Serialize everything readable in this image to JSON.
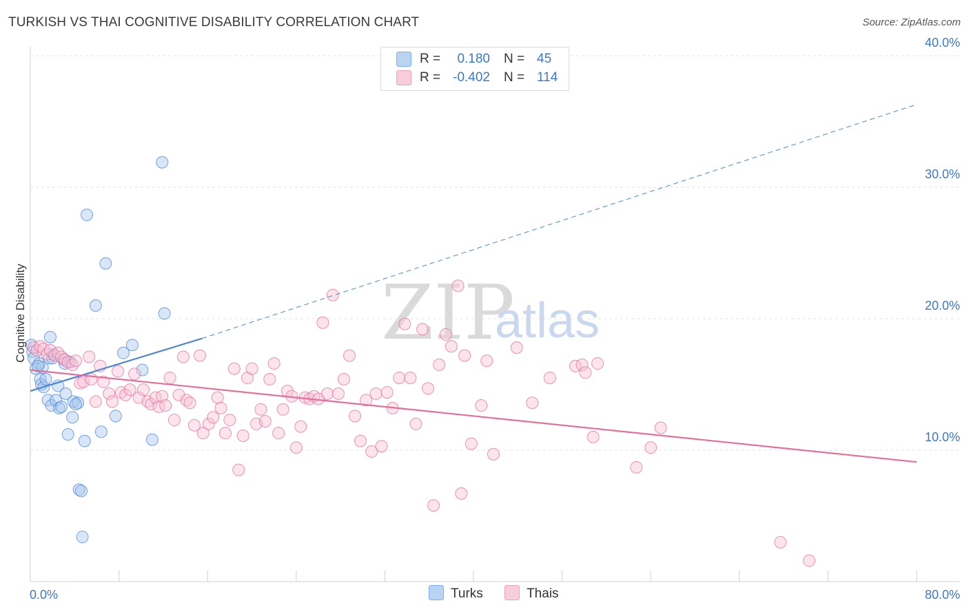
{
  "title": "TURKISH VS THAI COGNITIVE DISABILITY CORRELATION CHART",
  "source": "Source: ZipAtlas.com",
  "watermark": {
    "zip": "ZIP",
    "atlas": "atlas"
  },
  "legend": {
    "rows": [
      {
        "r_label": "R =",
        "r_value": "0.180",
        "n_label": "N =",
        "n_value": "45",
        "color": "#9bbfe8"
      },
      {
        "r_label": "R =",
        "r_value": "-0.402",
        "n_label": "N =",
        "n_value": "114",
        "color": "#f3a8c0"
      }
    ]
  },
  "bottom_legend": [
    {
      "label": "Turks",
      "color": "#9bbfe8"
    },
    {
      "label": "Thais",
      "color": "#f3a8c0"
    }
  ],
  "chart_data": {
    "type": "scatter",
    "title": "TURKISH VS THAI COGNITIVE DISABILITY CORRELATION CHART",
    "xlabel": "",
    "ylabel": "Cognitive Disability",
    "xlim": [
      0,
      80
    ],
    "ylim": [
      0,
      40
    ],
    "x_tick_labels": [
      {
        "value": 0,
        "label": "0.0%"
      },
      {
        "value": 80,
        "label": "80.0%"
      }
    ],
    "y_tick_labels": [
      {
        "value": 10,
        "label": "10.0%"
      },
      {
        "value": 20,
        "label": "20.0%"
      },
      {
        "value": 30,
        "label": "30.0%"
      },
      {
        "value": 40,
        "label": "40.0%"
      }
    ],
    "series": [
      {
        "name": "Turks",
        "color": "#4a86d4",
        "fill": "#a9c8ee",
        "trend": {
          "x0": 0,
          "y0": 14.5,
          "x1": 15.5,
          "y1": 18.5,
          "extend_to_x": 80,
          "extend_to_y": 36.3
        },
        "points": [
          [
            0.1,
            18.0
          ],
          [
            0.2,
            17.5
          ],
          [
            0.3,
            17.0
          ],
          [
            0.5,
            16.2
          ],
          [
            0.8,
            16.6
          ],
          [
            0.9,
            15.4
          ],
          [
            1.0,
            15.0
          ],
          [
            1.2,
            14.8
          ],
          [
            1.4,
            15.4
          ],
          [
            1.6,
            13.8
          ],
          [
            1.7,
            17.0
          ],
          [
            1.8,
            18.6
          ],
          [
            1.9,
            13.4
          ],
          [
            2.0,
            17.0
          ],
          [
            2.3,
            13.8
          ],
          [
            2.5,
            14.9
          ],
          [
            2.6,
            13.2
          ],
          [
            2.8,
            13.3
          ],
          [
            3.0,
            16.9
          ],
          [
            3.2,
            14.3
          ],
          [
            3.4,
            11.2
          ],
          [
            3.6,
            16.7
          ],
          [
            3.8,
            12.5
          ],
          [
            3.9,
            13.7
          ],
          [
            4.3,
            13.6
          ],
          [
            4.4,
            7.0
          ],
          [
            4.6,
            6.9
          ],
          [
            4.7,
            3.4
          ],
          [
            4.9,
            10.7
          ],
          [
            5.1,
            27.9
          ],
          [
            5.9,
            21.0
          ],
          [
            6.4,
            11.4
          ],
          [
            6.8,
            24.2
          ],
          [
            7.7,
            12.6
          ],
          [
            8.4,
            17.4
          ],
          [
            9.2,
            18.0
          ],
          [
            10.1,
            16.1
          ],
          [
            11.0,
            10.8
          ],
          [
            11.9,
            31.9
          ],
          [
            12.1,
            20.4
          ],
          [
            1.1,
            16.3
          ],
          [
            2.1,
            17.3
          ],
          [
            3.1,
            16.6
          ],
          [
            0.7,
            16.4
          ],
          [
            4.1,
            13.5
          ]
        ]
      },
      {
        "name": "Thais",
        "color": "#e3709b",
        "fill": "#f6c4d5",
        "trend": {
          "x0": 0,
          "y0": 16.1,
          "x1": 80,
          "y1": 9.1
        },
        "points": [
          [
            0.3,
            17.8
          ],
          [
            0.6,
            17.6
          ],
          [
            0.9,
            17.9
          ],
          [
            1.2,
            17.7
          ],
          [
            1.5,
            17.3
          ],
          [
            1.8,
            17.6
          ],
          [
            2.2,
            17.2
          ],
          [
            2.5,
            17.4
          ],
          [
            2.8,
            17.1
          ],
          [
            3.1,
            16.9
          ],
          [
            3.4,
            16.7
          ],
          [
            3.8,
            16.5
          ],
          [
            4.1,
            16.8
          ],
          [
            4.5,
            15.1
          ],
          [
            4.8,
            15.2
          ],
          [
            5.3,
            17.1
          ],
          [
            5.5,
            15.4
          ],
          [
            5.9,
            13.7
          ],
          [
            6.3,
            16.4
          ],
          [
            6.6,
            15.2
          ],
          [
            7.1,
            14.3
          ],
          [
            7.4,
            13.7
          ],
          [
            7.9,
            16.0
          ],
          [
            8.2,
            14.4
          ],
          [
            8.6,
            14.2
          ],
          [
            9.0,
            14.6
          ],
          [
            9.4,
            15.8
          ],
          [
            9.8,
            14.0
          ],
          [
            10.2,
            14.6
          ],
          [
            10.6,
            13.7
          ],
          [
            10.9,
            13.5
          ],
          [
            11.3,
            14.0
          ],
          [
            11.6,
            13.3
          ],
          [
            11.9,
            14.1
          ],
          [
            12.2,
            13.4
          ],
          [
            12.6,
            15.5
          ],
          [
            13.0,
            12.3
          ],
          [
            13.4,
            14.2
          ],
          [
            13.8,
            17.1
          ],
          [
            14.1,
            13.8
          ],
          [
            14.4,
            13.6
          ],
          [
            14.8,
            11.9
          ],
          [
            15.3,
            17.2
          ],
          [
            15.6,
            11.3
          ],
          [
            16.1,
            12.0
          ],
          [
            16.5,
            12.5
          ],
          [
            16.9,
            14.0
          ],
          [
            17.2,
            13.2
          ],
          [
            17.6,
            11.3
          ],
          [
            18.0,
            12.3
          ],
          [
            18.4,
            16.2
          ],
          [
            18.8,
            8.5
          ],
          [
            19.2,
            11.1
          ],
          [
            19.6,
            15.5
          ],
          [
            20.0,
            16.2
          ],
          [
            20.4,
            12.0
          ],
          [
            20.8,
            13.1
          ],
          [
            21.2,
            12.2
          ],
          [
            21.6,
            15.4
          ],
          [
            22.0,
            16.6
          ],
          [
            22.4,
            11.3
          ],
          [
            22.8,
            13.1
          ],
          [
            23.2,
            14.5
          ],
          [
            23.6,
            14.1
          ],
          [
            24.0,
            10.2
          ],
          [
            24.4,
            11.8
          ],
          [
            24.8,
            14.0
          ],
          [
            25.2,
            13.9
          ],
          [
            25.6,
            14.1
          ],
          [
            26.0,
            13.9
          ],
          [
            26.4,
            19.7
          ],
          [
            26.8,
            14.3
          ],
          [
            27.3,
            21.8
          ],
          [
            27.8,
            14.3
          ],
          [
            28.3,
            15.4
          ],
          [
            28.8,
            17.2
          ],
          [
            29.3,
            12.6
          ],
          [
            29.8,
            10.7
          ],
          [
            30.3,
            13.8
          ],
          [
            30.8,
            9.9
          ],
          [
            31.2,
            14.3
          ],
          [
            31.7,
            10.3
          ],
          [
            32.2,
            14.4
          ],
          [
            32.7,
            13.2
          ],
          [
            33.3,
            15.5
          ],
          [
            33.8,
            19.6
          ],
          [
            34.3,
            15.5
          ],
          [
            34.8,
            12.0
          ],
          [
            35.4,
            19.2
          ],
          [
            35.9,
            14.7
          ],
          [
            36.4,
            5.8
          ],
          [
            36.9,
            16.5
          ],
          [
            37.5,
            18.8
          ],
          [
            38.0,
            17.9
          ],
          [
            38.6,
            22.5
          ],
          [
            38.9,
            6.7
          ],
          [
            39.2,
            17.2
          ],
          [
            39.8,
            10.5
          ],
          [
            40.7,
            13.4
          ],
          [
            41.2,
            16.8
          ],
          [
            41.8,
            9.7
          ],
          [
            43.9,
            17.8
          ],
          [
            45.3,
            13.6
          ],
          [
            46.9,
            15.5
          ],
          [
            49.2,
            16.4
          ],
          [
            49.8,
            16.5
          ],
          [
            50.1,
            15.9
          ],
          [
            50.8,
            11.0
          ],
          [
            51.2,
            16.6
          ],
          [
            54.7,
            8.7
          ],
          [
            56.0,
            10.2
          ],
          [
            56.9,
            11.7
          ],
          [
            67.7,
            3.0
          ],
          [
            70.3,
            1.6
          ]
        ]
      }
    ]
  }
}
